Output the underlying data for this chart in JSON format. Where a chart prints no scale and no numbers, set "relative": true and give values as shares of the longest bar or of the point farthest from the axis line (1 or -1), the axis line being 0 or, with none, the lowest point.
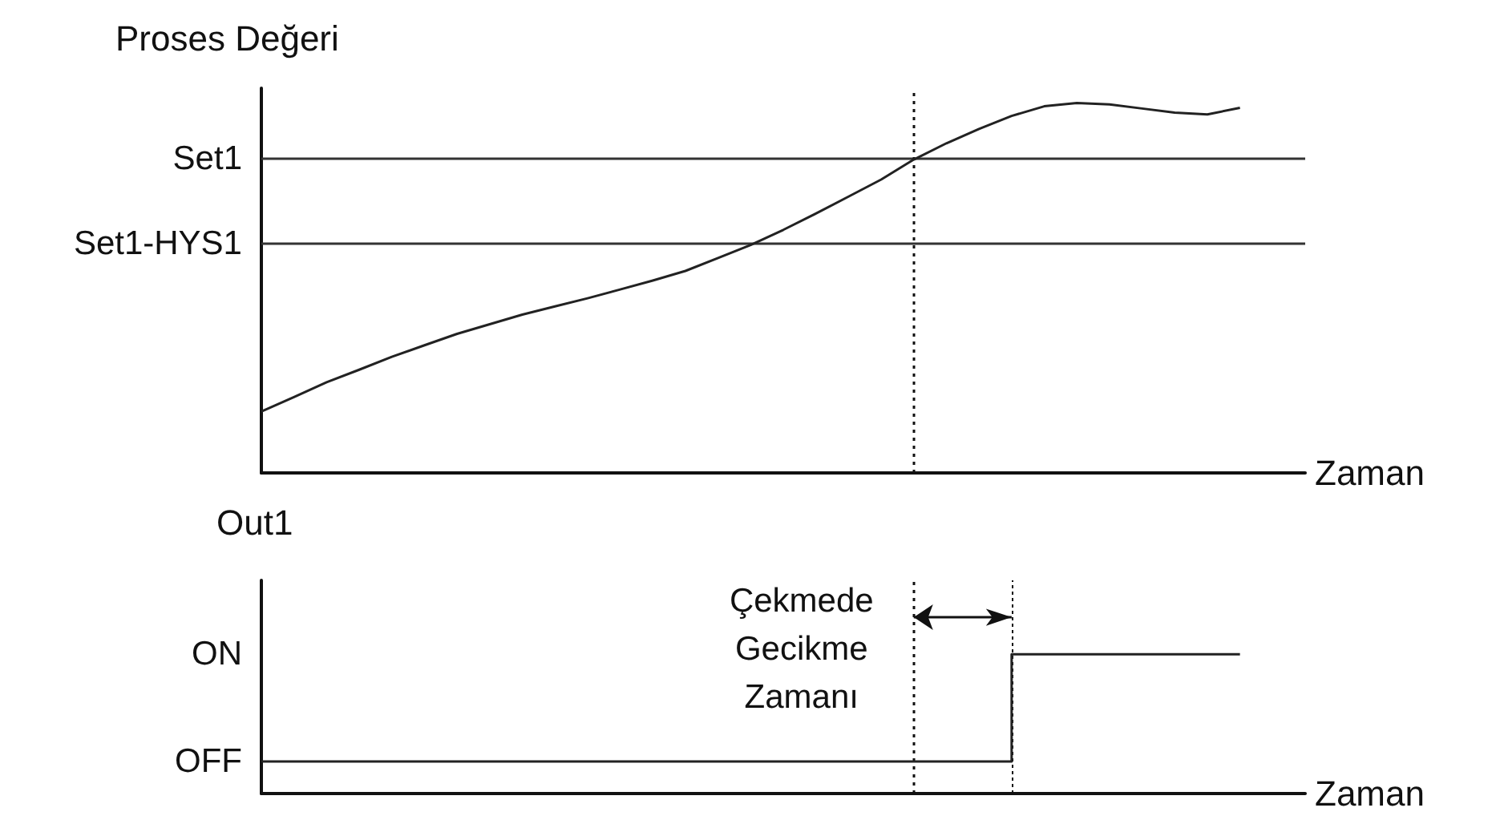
{
  "chart_data": [
    {
      "type": "line",
      "relative": true,
      "ylabel": "Proses Değeri",
      "xlabel": "Zaman",
      "color": "#222222",
      "categories": [
        null,
        null,
        null,
        null,
        null,
        null,
        null,
        null,
        null,
        null,
        null,
        null,
        null,
        null,
        null,
        null,
        null,
        null,
        null,
        null,
        null,
        null,
        null,
        null,
        null,
        null,
        null,
        null,
        null,
        null,
        null,
        null,
        null
      ],
      "values": [
        0.166,
        0.205,
        0.245,
        0.279,
        0.314,
        0.345,
        0.376,
        0.402,
        0.428,
        0.45,
        0.472,
        0.496,
        0.52,
        0.546,
        0.581,
        0.616,
        0.657,
        0.701,
        0.747,
        0.793,
        0.847,
        0.891,
        0.93,
        0.965,
        0.991,
        1,
        0.996,
        0.985,
        0.974,
        0.969,
        0.987,
        null,
        null
      ],
      "ref_lines": [
        {
          "axis": "y",
          "value": 0.847,
          "label": "Set1",
          "color": "#333333",
          "line_style": "solid"
        },
        {
          "axis": "y",
          "value": 0.624,
          "label": "Set1-HYS1",
          "color": "#333333",
          "line_style": "solid"
        }
      ]
    },
    {
      "type": "step",
      "relative": true,
      "ylabel": "Out1",
      "xlabel": "Zaman",
      "color": "#222222",
      "categories": [
        null,
        null,
        null,
        null,
        null,
        null,
        null,
        null,
        null,
        null,
        null,
        null,
        null,
        null,
        null,
        null,
        null,
        null,
        null,
        null,
        null,
        null,
        null,
        null,
        null,
        null,
        null,
        null,
        null,
        null,
        null,
        null,
        null
      ],
      "values": [
        0.23,
        0.23,
        0.23,
        0.23,
        0.23,
        0.23,
        0.23,
        0.23,
        0.23,
        0.23,
        0.23,
        0.23,
        0.23,
        0.23,
        0.23,
        0.23,
        0.23,
        0.23,
        0.23,
        0.23,
        0.23,
        0.23,
        0.23,
        1,
        1,
        1,
        1,
        1,
        1,
        1,
        1,
        null,
        null
      ],
      "annotations": [
        "ON",
        "OFF",
        "Çekmede Gecikme Zamanı"
      ]
    }
  ]
}
